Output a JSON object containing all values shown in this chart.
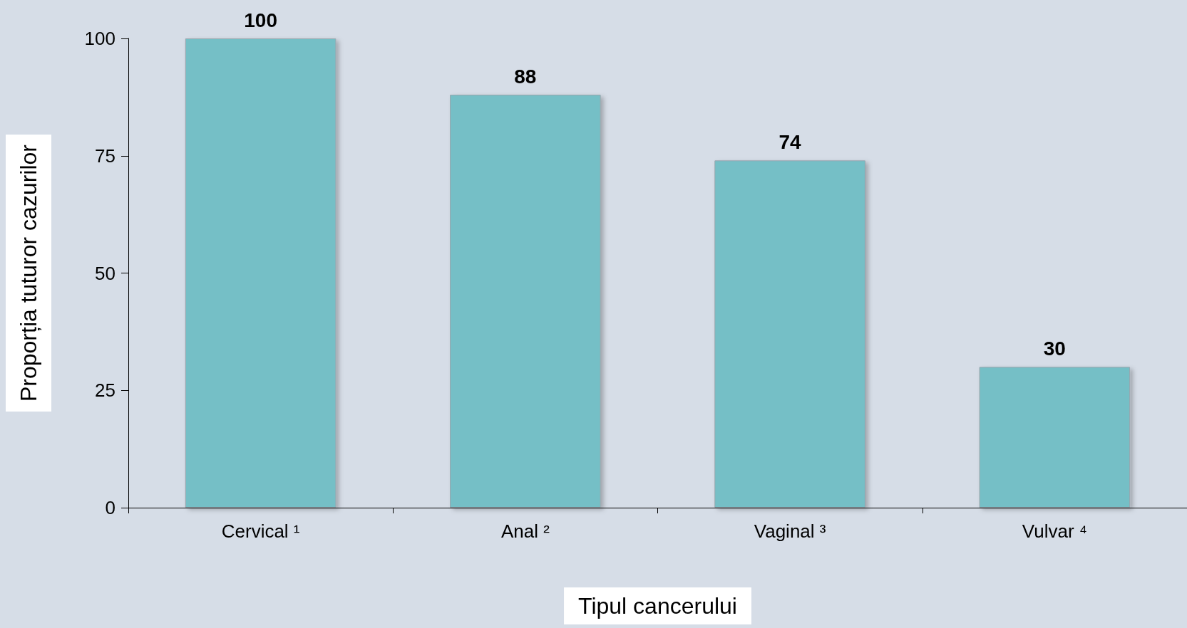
{
  "chart_data": {
    "type": "bar",
    "categories": [
      "Cervical ¹",
      "Anal ²",
      "Vaginal ³",
      "Vulvar ⁴"
    ],
    "values": [
      100,
      88,
      74,
      30
    ],
    "color": "#74bfc6",
    "xlabel": "Tipul cancerului",
    "ylabel": "Proporția tuturor cazurilor",
    "ylim": [
      0,
      100
    ],
    "yticks": [
      0,
      25,
      50,
      75,
      100
    ],
    "data_labels": true
  }
}
